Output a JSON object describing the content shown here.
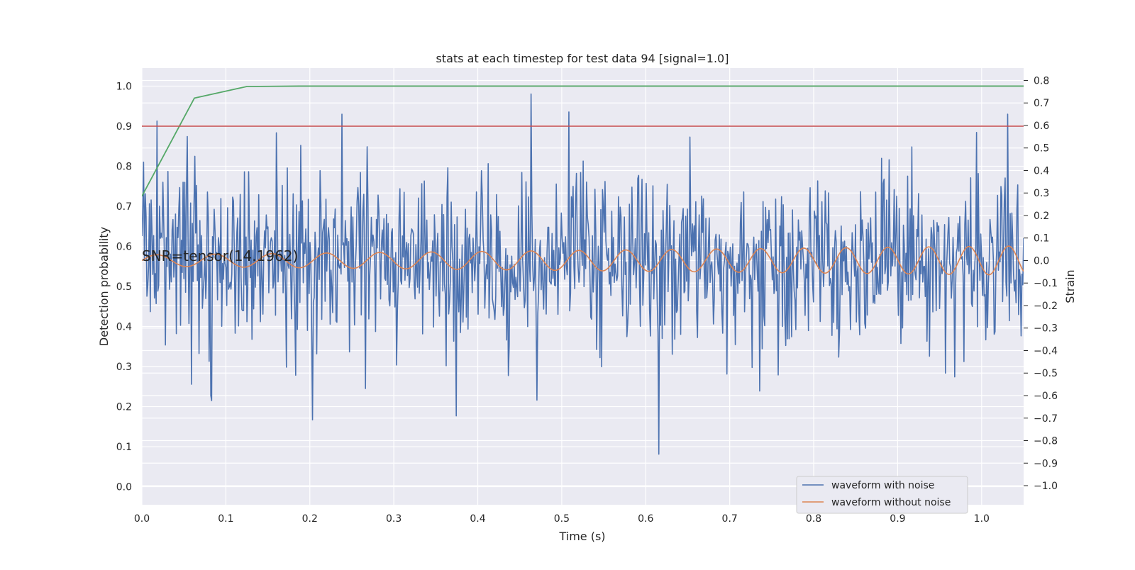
{
  "chart_data": {
    "type": "line",
    "title": "stats at each timestep for test data 94 [signal=1.0]",
    "xlabel": "Time (s)",
    "ylabel": "Detection probability",
    "ylabel_right": "Strain",
    "xlim": [
      0.0,
      1.05
    ],
    "ylim_left": [
      -0.045,
      1.045
    ],
    "ylim_right": [
      -1.085,
      0.855
    ],
    "grid": true,
    "legend_placement": "lower-right",
    "x_ticks": [
      0.0,
      0.1,
      0.2,
      0.3,
      0.4,
      0.5,
      0.6,
      0.7,
      0.8,
      0.9,
      1.0
    ],
    "x_tick_labels": [
      "0.0",
      "0.1",
      "0.2",
      "0.3",
      "0.4",
      "0.5",
      "0.6",
      "0.7",
      "0.8",
      "0.9",
      "1.0"
    ],
    "y_left_ticks": [
      0.0,
      0.1,
      0.2,
      0.3,
      0.4,
      0.5,
      0.6,
      0.7,
      0.8,
      0.9,
      1.0
    ],
    "y_left_tick_labels": [
      "0.0",
      "0.1",
      "0.2",
      "0.3",
      "0.4",
      "0.5",
      "0.6",
      "0.7",
      "0.8",
      "0.9",
      "1.0"
    ],
    "y_right_ticks": [
      0.8,
      0.7,
      0.6,
      0.5,
      0.4,
      0.3,
      0.2,
      0.1,
      0.0,
      -0.1,
      -0.2,
      -0.3,
      -0.4,
      -0.5,
      -0.6,
      -0.7,
      -0.8,
      -0.9,
      -1.0
    ],
    "y_right_tick_labels": [
      "0.8",
      "0.7",
      "0.6",
      "0.5",
      "0.4",
      "0.3",
      "0.2",
      "0.1",
      "0.0",
      "−0.1",
      "−0.2",
      "−0.3",
      "−0.4",
      "−0.5",
      "−0.6",
      "−0.7",
      "−0.8",
      "−0.9",
      "−1.0"
    ],
    "annotation": "SNR=tensor(14.1962)",
    "series": [
      {
        "name": "waveform with noise",
        "axis": "right",
        "color": "#4c72b0",
        "kind": "noise",
        "x_range": [
          0.0,
          1.05
        ],
        "samples": 1050,
        "std": 0.2,
        "peaks": [
          {
            "x": 0.018,
            "y": 0.62
          },
          {
            "x": 0.238,
            "y": 0.65
          },
          {
            "x": 0.463,
            "y": 0.74
          },
          {
            "x": 0.508,
            "y": 0.66
          },
          {
            "x": 1.031,
            "y": 0.65
          }
        ],
        "troughs": [
          {
            "x": 0.374,
            "y": -0.69
          },
          {
            "x": 0.616,
            "y": -0.86
          },
          {
            "x": 0.47,
            "y": -0.62
          },
          {
            "x": 0.082,
            "y": -0.6
          }
        ]
      },
      {
        "name": "waveform without noise",
        "axis": "right",
        "color": "#dd8452",
        "kind": "chirp",
        "x_range": [
          0.0,
          1.05
        ],
        "samples": 1050,
        "amplitude_start": 0.025,
        "amplitude_end": 0.065,
        "frequency_start": 14.0,
        "frequency_end": 21.5
      },
      {
        "name": "",
        "axis": "left",
        "color": "#55a868",
        "kind": "line",
        "x": [
          0.0,
          0.0625,
          0.125,
          0.1875,
          0.25,
          0.3125,
          0.375,
          0.4375,
          0.5,
          0.5625,
          0.625,
          0.6875,
          0.75,
          0.8125,
          0.875,
          0.9375,
          1.0,
          1.05
        ],
        "y": [
          0.725,
          0.97,
          0.999,
          1.0,
          1.0,
          1.0,
          1.0,
          1.0,
          1.0,
          1.0,
          1.0,
          1.0,
          1.0,
          1.0,
          1.0,
          1.0,
          1.0,
          1.0
        ]
      },
      {
        "name": "",
        "axis": "left",
        "color": "#c44e52",
        "kind": "hline",
        "y": 0.9
      }
    ],
    "legend": [
      {
        "label": "waveform with noise",
        "color": "#4c72b0"
      },
      {
        "label": "waveform without noise",
        "color": "#dd8452"
      }
    ]
  }
}
